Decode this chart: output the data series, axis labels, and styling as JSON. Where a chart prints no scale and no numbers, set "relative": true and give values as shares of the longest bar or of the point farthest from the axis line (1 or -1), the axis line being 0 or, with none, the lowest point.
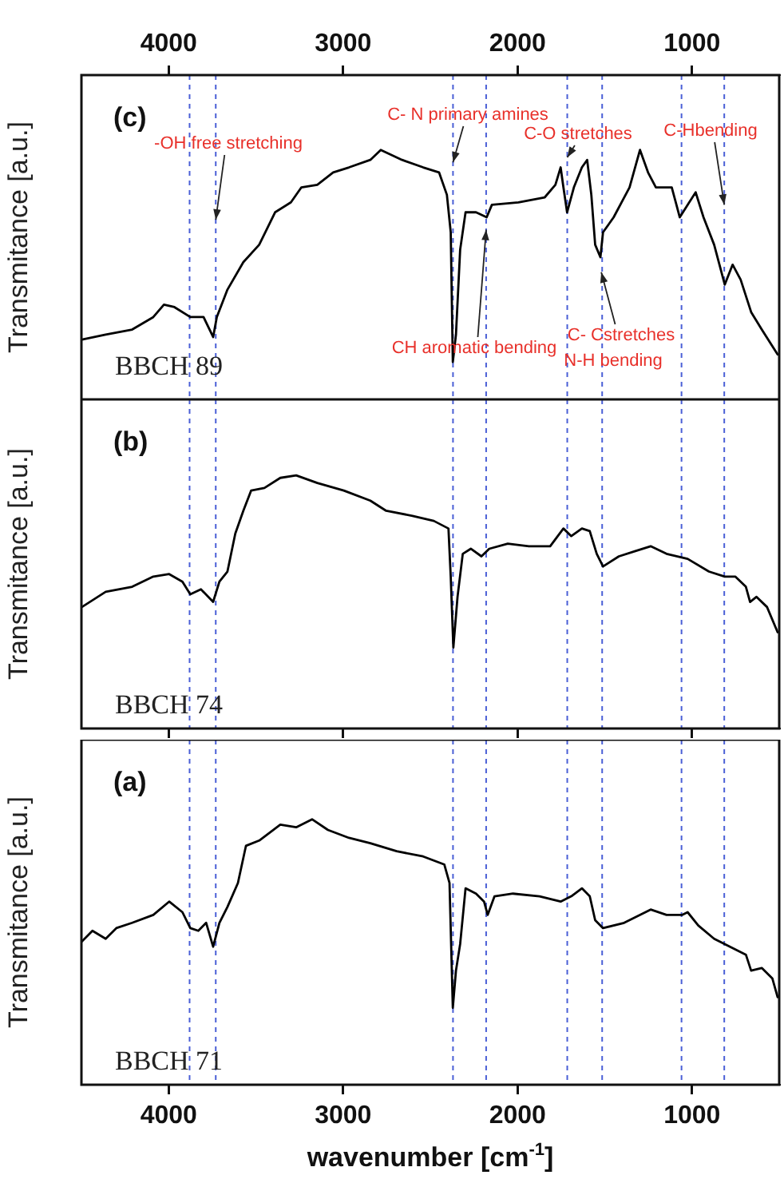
{
  "chart_data": [
    {
      "type": "line",
      "title": "(c)",
      "ylabel": "Transmitance [a.u.]",
      "relative": true,
      "marker": "none",
      "tick_labels": "x",
      "xlim": [
        4500,
        500
      ],
      "xticks": [
        4000,
        3000,
        2000,
        1000
      ],
      "x": [
        4497,
        4361,
        4209,
        4088,
        4027,
        3967,
        3876,
        3800,
        3745,
        3724,
        3663,
        3572,
        3481,
        3390,
        3299,
        3239,
        3148,
        3057,
        2966,
        2844,
        2784,
        2662,
        2541,
        2450,
        2405,
        2383,
        2371,
        2353,
        2329,
        2298,
        2238,
        2177,
        2147,
        1995,
        1844,
        1783,
        1753,
        1737,
        1716,
        1677,
        1631,
        1601,
        1577,
        1555,
        1525,
        1510,
        1449,
        1358,
        1298,
        1252,
        1207,
        1116,
        1070,
        1025,
        979,
        934,
        873,
        812,
        767,
        721,
        661,
        600,
        509
      ],
      "series": [
        {
          "color": "#000000",
          "values": [
            0.24,
            0.26,
            0.28,
            0.33,
            0.38,
            0.37,
            0.33,
            0.33,
            0.25,
            0.33,
            0.44,
            0.55,
            0.62,
            0.75,
            0.79,
            0.85,
            0.86,
            0.91,
            0.93,
            0.96,
            1,
            0.96,
            0.93,
            0.91,
            0.82,
            0.67,
            0.15,
            0.26,
            0.6,
            0.75,
            0.75,
            0.73,
            0.78,
            0.79,
            0.81,
            0.86,
            0.93,
            0.85,
            0.75,
            0.85,
            0.93,
            0.96,
            0.82,
            0.62,
            0.57,
            0.67,
            0.73,
            0.85,
            1,
            0.91,
            0.85,
            0.85,
            0.73,
            0.78,
            0.83,
            0.73,
            0.62,
            0.46,
            0.54,
            0.48,
            0.35,
            0.28,
            0.18
          ]
        }
      ],
      "ref_lines": [
        {
          "axis": "x",
          "value": 3880,
          "color": "#4a5fd6",
          "line_style": "dashed"
        },
        {
          "axis": "x",
          "value": 3730,
          "color": "#4a5fd6",
          "line_style": "dashed"
        },
        {
          "axis": "x",
          "value": 2370,
          "color": "#4a5fd6",
          "line_style": "dashed"
        },
        {
          "axis": "x",
          "value": 2180,
          "color": "#4a5fd6",
          "line_style": "dashed"
        },
        {
          "axis": "x",
          "value": 1715,
          "color": "#4a5fd6",
          "line_style": "dashed"
        },
        {
          "axis": "x",
          "value": 1515,
          "color": "#4a5fd6",
          "line_style": "dashed"
        },
        {
          "axis": "x",
          "value": 1060,
          "color": "#4a5fd6",
          "line_style": "dashed"
        },
        {
          "axis": "x",
          "value": 815,
          "color": "#4a5fd6",
          "line_style": "dashed"
        }
      ],
      "annotations": [
        {
          "text": "-OH free stretching",
          "x": 3730,
          "y": 0.72
        },
        {
          "text": "C- N primary amines",
          "x": 2370,
          "y": 0.95
        },
        {
          "text": "C-O stretches",
          "x": 1715,
          "y": 0.97
        },
        {
          "text": "C-Hbending",
          "x": 815,
          "y": 0.78
        },
        {
          "text": "CH aromatic bending",
          "x": 2180,
          "y": 0.68
        },
        {
          "text": "C- Cstretches",
          "x": 1520,
          "y": 0.51
        },
        "N-H bending",
        "BBCH 89"
      ]
    },
    {
      "type": "line",
      "title": "(b)",
      "ylabel": "Transmitance [a.u.]",
      "relative": true,
      "marker": "none",
      "tick_labels": false,
      "xlim": [
        4500,
        500
      ],
      "xticks": [
        {
          "value": 4000,
          "label": null
        },
        {
          "value": 3000,
          "label": null
        },
        {
          "value": 2000,
          "label": null
        },
        {
          "value": 1000,
          "label": null
        }
      ],
      "x": [
        4497,
        4361,
        4209,
        4088,
        3997,
        3921,
        3876,
        3815,
        3745,
        3709,
        3663,
        3618,
        3572,
        3527,
        3451,
        3360,
        3269,
        3148,
        2996,
        2844,
        2753,
        2602,
        2480,
        2396,
        2383,
        2368,
        2344,
        2314,
        2268,
        2207,
        2162,
        2056,
        1935,
        1813,
        1737,
        1692,
        1631,
        1586,
        1546,
        1510,
        1419,
        1328,
        1237,
        1146,
        1025,
        903,
        812,
        752,
        691,
        667,
        630,
        570,
        509
      ],
      "series": [
        {
          "color": "#000000",
          "values": [
            0.48,
            0.54,
            0.56,
            0.6,
            0.61,
            0.58,
            0.53,
            0.55,
            0.5,
            0.58,
            0.62,
            0.77,
            0.86,
            0.94,
            0.95,
            0.99,
            1,
            0.97,
            0.94,
            0.9,
            0.86,
            0.84,
            0.82,
            0.79,
            0.6,
            0.32,
            0.52,
            0.69,
            0.71,
            0.68,
            0.71,
            0.73,
            0.72,
            0.72,
            0.79,
            0.76,
            0.79,
            0.78,
            0.69,
            0.64,
            0.68,
            0.7,
            0.72,
            0.69,
            0.67,
            0.62,
            0.6,
            0.6,
            0.56,
            0.5,
            0.52,
            0.48,
            0.38
          ]
        }
      ],
      "ref_lines": [
        {
          "axis": "x",
          "value": 3880,
          "color": "#4a5fd6",
          "line_style": "dashed"
        },
        {
          "axis": "x",
          "value": 3730,
          "color": "#4a5fd6",
          "line_style": "dashed"
        },
        {
          "axis": "x",
          "value": 2370,
          "color": "#4a5fd6",
          "line_style": "dashed"
        },
        {
          "axis": "x",
          "value": 2180,
          "color": "#4a5fd6",
          "line_style": "dashed"
        },
        {
          "axis": "x",
          "value": 1715,
          "color": "#4a5fd6",
          "line_style": "dashed"
        },
        {
          "axis": "x",
          "value": 1515,
          "color": "#4a5fd6",
          "line_style": "dashed"
        },
        {
          "axis": "x",
          "value": 1060,
          "color": "#4a5fd6",
          "line_style": "dashed"
        },
        {
          "axis": "x",
          "value": 815,
          "color": "#4a5fd6",
          "line_style": "dashed"
        }
      ],
      "annotations": [
        "BBCH 74"
      ]
    },
    {
      "type": "line",
      "title": "(a)",
      "ylabel": "Transmitance [a.u.]",
      "xlabel": "wavenumber [cm$^{-1}$]",
      "relative": true,
      "marker": "none",
      "tick_labels": "x",
      "xlim": [
        4500,
        500
      ],
      "xticks": [
        4000,
        3000,
        2000,
        1000
      ],
      "x": [
        4497,
        4437,
        4361,
        4300,
        4209,
        4088,
        3997,
        3921,
        3876,
        3830,
        3785,
        3745,
        3709,
        3663,
        3603,
        3557,
        3481,
        3360,
        3269,
        3178,
        3087,
        2966,
        2844,
        2693,
        2541,
        2420,
        2390,
        2371,
        2353,
        2329,
        2298,
        2238,
        2192,
        2171,
        2132,
        2026,
        1874,
        1753,
        1692,
        1631,
        1586,
        1555,
        1510,
        1389,
        1237,
        1146,
        1055,
        1025,
        964,
        873,
        782,
        691,
        661,
        600,
        539,
        509
      ],
      "series": [
        {
          "color": "#000000",
          "values": [
            0.54,
            0.58,
            0.55,
            0.59,
            0.61,
            0.64,
            0.69,
            0.65,
            0.59,
            0.58,
            0.61,
            0.52,
            0.61,
            0.67,
            0.76,
            0.9,
            0.92,
            0.98,
            0.97,
            1,
            0.96,
            0.93,
            0.91,
            0.88,
            0.86,
            0.83,
            0.76,
            0.29,
            0.43,
            0.53,
            0.74,
            0.72,
            0.69,
            0.64,
            0.71,
            0.72,
            0.71,
            0.69,
            0.71,
            0.74,
            0.71,
            0.62,
            0.59,
            0.61,
            0.66,
            0.64,
            0.64,
            0.65,
            0.6,
            0.55,
            0.52,
            0.49,
            0.43,
            0.44,
            0.4,
            0.33
          ]
        }
      ],
      "ref_lines": [
        {
          "axis": "x",
          "value": 3880,
          "color": "#4a5fd6",
          "line_style": "dashed"
        },
        {
          "axis": "x",
          "value": 3730,
          "color": "#4a5fd6",
          "line_style": "dashed"
        },
        {
          "axis": "x",
          "value": 2370,
          "color": "#4a5fd6",
          "line_style": "dashed"
        },
        {
          "axis": "x",
          "value": 2180,
          "color": "#4a5fd6",
          "line_style": "dashed"
        },
        {
          "axis": "x",
          "value": 1715,
          "color": "#4a5fd6",
          "line_style": "dashed"
        },
        {
          "axis": "x",
          "value": 1515,
          "color": "#4a5fd6",
          "line_style": "dashed"
        },
        {
          "axis": "x",
          "value": 1060,
          "color": "#4a5fd6",
          "line_style": "dashed"
        },
        {
          "axis": "x",
          "value": 815,
          "color": "#4a5fd6",
          "line_style": "dashed"
        }
      ],
      "annotations": [
        "BBCH 71"
      ]
    }
  ]
}
